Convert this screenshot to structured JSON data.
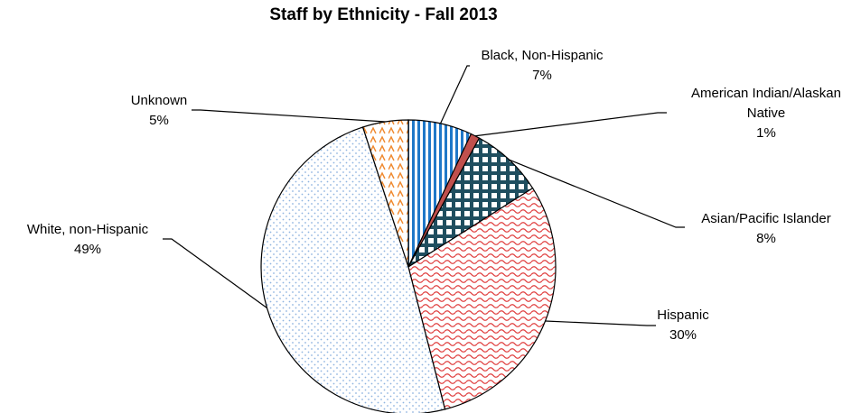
{
  "chart_data": {
    "type": "pie",
    "title": "Staff by Ethnicity - Fall 2013",
    "slices": [
      {
        "name": "Black, Non-Hispanic",
        "value": 7,
        "label_lines": [
          "Black, Non-Hispanic",
          "7%"
        ],
        "color": "#1f78c8",
        "pattern": "vertical-stripes"
      },
      {
        "name": "American Indian/Alaskan Native",
        "value": 1,
        "label_lines": [
          "American Indian/Alaskan",
          "Native",
          "1%"
        ],
        "color": "#c0504d",
        "pattern": "solid"
      },
      {
        "name": "Asian/Pacific Islander",
        "value": 8,
        "label_lines": [
          "Asian/Pacific Islander",
          "8%"
        ],
        "color": "#1f4e5f",
        "pattern": "checker"
      },
      {
        "name": "Hispanic",
        "value": 30,
        "label_lines": [
          "Hispanic",
          "30%"
        ],
        "color": "#e04040",
        "pattern": "wave"
      },
      {
        "name": "White, non-Hispanic",
        "value": 49,
        "label_lines": [
          "White, non-Hispanic",
          "49%"
        ],
        "color": "#8fb4e0",
        "pattern": "dots"
      },
      {
        "name": "Unknown",
        "value": 5,
        "label_lines": [
          "Unknown",
          "5%"
        ],
        "color": "#f08a30",
        "pattern": "zigzag"
      }
    ],
    "legend": "none"
  }
}
